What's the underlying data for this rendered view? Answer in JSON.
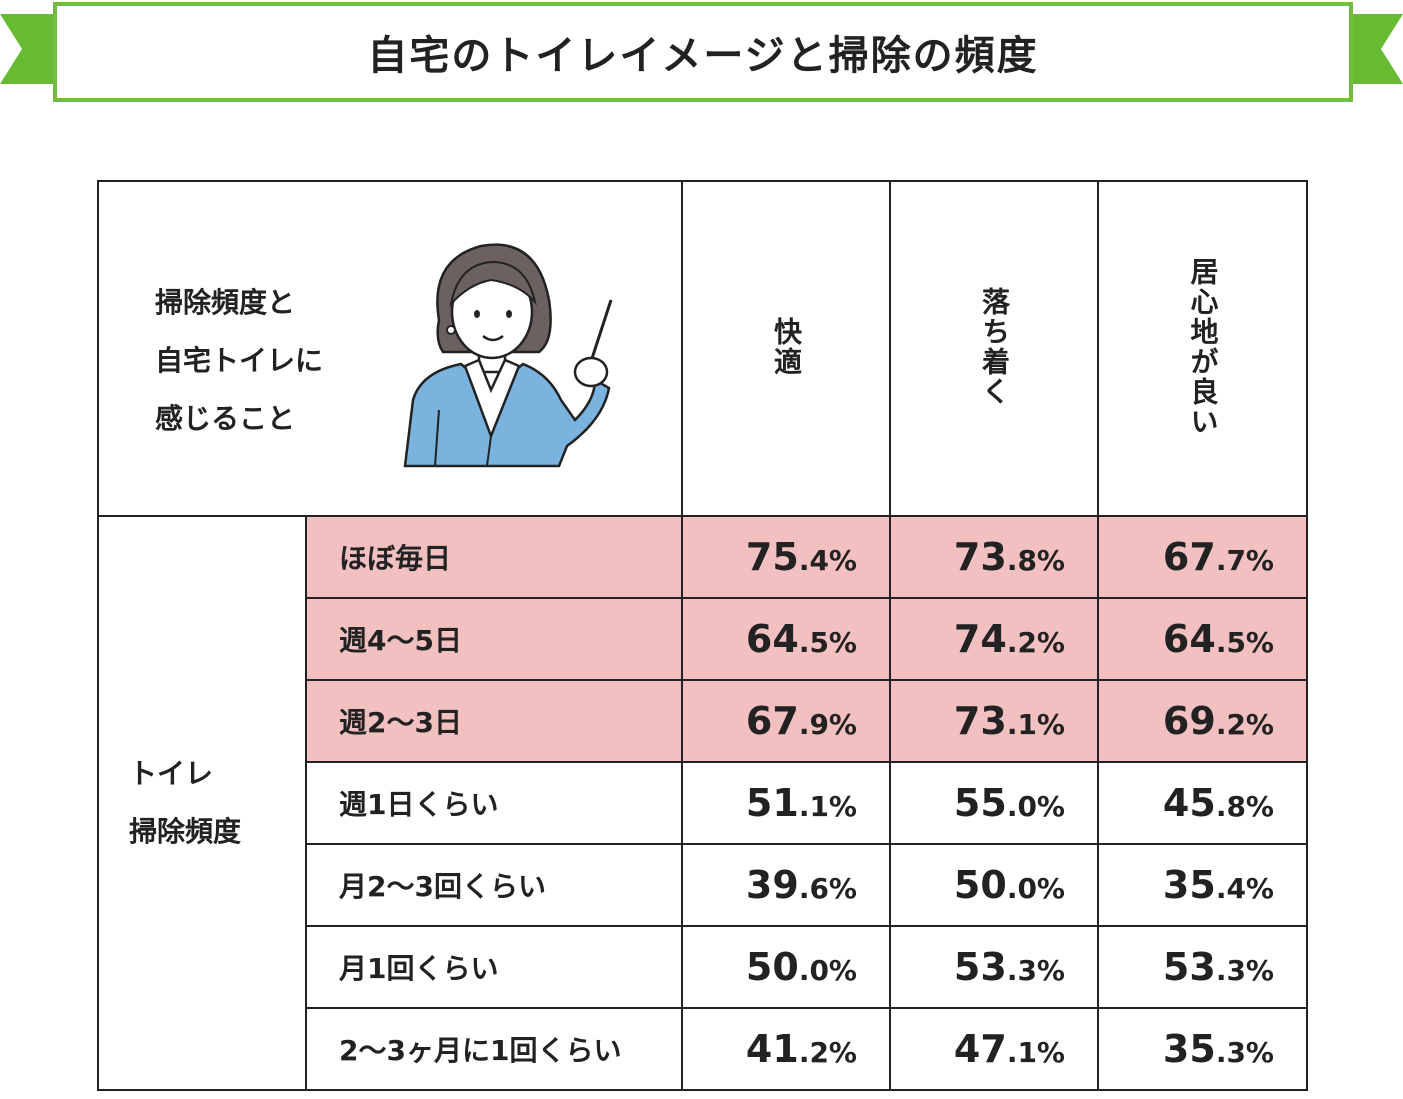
{
  "title": "自宅のトイレイメージと掃除の頻度",
  "header": {
    "desc_lines": [
      "掃除頻度と",
      "自宅トイレに",
      "感じること"
    ],
    "columns": [
      "快適",
      "落ち着く",
      "居心地が良い"
    ]
  },
  "group_label_lines": [
    "トイレ",
    "掃除頻度"
  ],
  "colors": {
    "banner": "#6fbf3a",
    "highlight": "#f2c0c0",
    "illustration_jacket": "#7ab3de"
  },
  "illustration": "woman-with-pointer",
  "chart_data": {
    "type": "table",
    "title": "自宅のトイレイメージと掃除の頻度",
    "columns": [
      "快適",
      "落ち着く",
      "居心地が良い"
    ],
    "rows": [
      {
        "label": "ほぼ毎日",
        "highlight": true,
        "cells": [
          {
            "int": "75",
            "dec": ".4%"
          },
          {
            "int": "73",
            "dec": ".8%"
          },
          {
            "int": "67",
            "dec": ".7%"
          }
        ]
      },
      {
        "label": "週4〜5日",
        "highlight": true,
        "cells": [
          {
            "int": "64",
            "dec": ".5%"
          },
          {
            "int": "74",
            "dec": ".2%"
          },
          {
            "int": "64",
            "dec": ".5%"
          }
        ]
      },
      {
        "label": "週2〜3日",
        "highlight": true,
        "cells": [
          {
            "int": "67",
            "dec": ".9%"
          },
          {
            "int": "73",
            "dec": ".1%"
          },
          {
            "int": "69",
            "dec": ".2%"
          }
        ]
      },
      {
        "label": "週1日くらい",
        "highlight": false,
        "cells": [
          {
            "int": "51",
            "dec": ".1%"
          },
          {
            "int": "55",
            "dec": ".0%"
          },
          {
            "int": "45",
            "dec": ".8%"
          }
        ]
      },
      {
        "label": "月2〜3回くらい",
        "highlight": false,
        "cells": [
          {
            "int": "39",
            "dec": ".6%"
          },
          {
            "int": "50",
            "dec": ".0%"
          },
          {
            "int": "35",
            "dec": ".4%"
          }
        ]
      },
      {
        "label": "月1回くらい",
        "highlight": false,
        "cells": [
          {
            "int": "50",
            "dec": ".0%"
          },
          {
            "int": "53",
            "dec": ".3%"
          },
          {
            "int": "53",
            "dec": ".3%"
          }
        ]
      },
      {
        "label": "2〜3ヶ月に1回くらい",
        "highlight": false,
        "cells": [
          {
            "int": "41",
            "dec": ".2%"
          },
          {
            "int": "47",
            "dec": ".1%"
          },
          {
            "int": "35",
            "dec": ".3%"
          }
        ]
      }
    ]
  }
}
